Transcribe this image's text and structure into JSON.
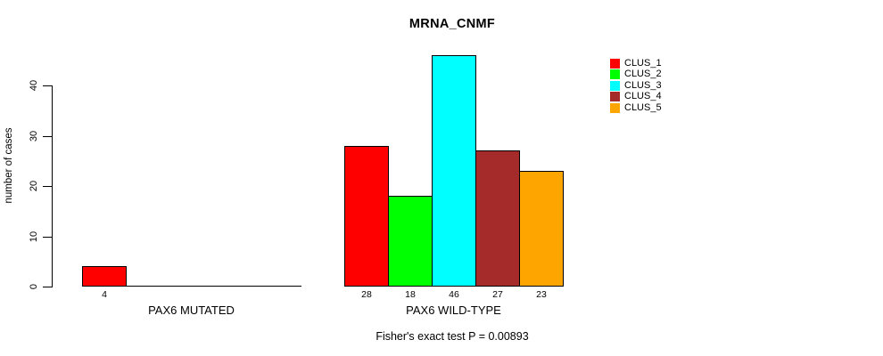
{
  "chart_data": {
    "type": "bar",
    "title": "MRNA_CNMF",
    "xlabel": "",
    "ylabel": "number of cases",
    "annotation": "Fisher's exact test P = 0.00893",
    "yticks": [
      0,
      10,
      20,
      30,
      40
    ],
    "ylim": [
      0,
      48
    ],
    "grid": false,
    "legend_position": "right",
    "legend": [
      {
        "label": "CLUS_1",
        "color": "#ff0000"
      },
      {
        "label": "CLUS_2",
        "color": "#00ff00"
      },
      {
        "label": "CLUS_3",
        "color": "#00ffff"
      },
      {
        "label": "CLUS_4",
        "color": "#a52a2a"
      },
      {
        "label": "CLUS_5",
        "color": "#ffa500"
      }
    ],
    "groups": [
      {
        "label": "PAX6 MUTATED",
        "values": [
          4,
          0,
          0,
          0,
          0
        ],
        "value_labels": [
          "4",
          "",
          "",
          "",
          ""
        ]
      },
      {
        "label": "PAX6 WILD-TYPE",
        "values": [
          28,
          18,
          46,
          27,
          23
        ],
        "value_labels": [
          "28",
          "18",
          "46",
          "27",
          "23"
        ]
      }
    ]
  }
}
